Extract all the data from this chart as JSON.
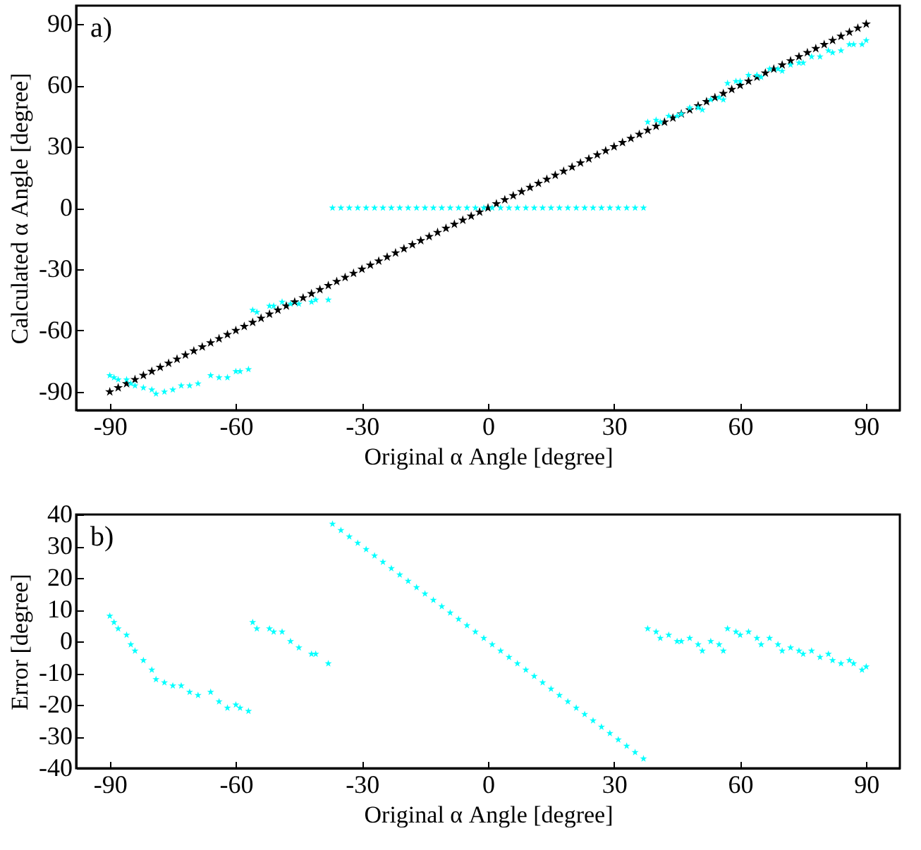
{
  "chart_data": [
    {
      "type": "scatter",
      "xlabel": "Original α Angle [degree]",
      "ylabel": "Calculated α Angle [degree]",
      "annotations": [
        "a)"
      ],
      "xlim": [
        -98,
        98
      ],
      "xticks": [
        -90,
        -60,
        -30,
        0,
        30,
        60,
        90
      ],
      "ylim": [
        -99,
        99
      ],
      "yticks": [
        -90,
        -60,
        -30,
        0,
        30,
        60,
        90
      ],
      "grid": false,
      "marker": "star",
      "series": [
        {
          "color": "#000000",
          "x": [
            -90,
            -88,
            -86,
            -84,
            -82,
            -80,
            -78,
            -76,
            -74,
            -72,
            -70,
            -68,
            -66,
            -64,
            -62,
            -60,
            -58,
            -56,
            -54,
            -52,
            -50,
            -48,
            -46,
            -44,
            -42,
            -40,
            -38,
            -36,
            -34,
            -32,
            -30,
            -28,
            -26,
            -24,
            -22,
            -20,
            -18,
            -16,
            -14,
            -12,
            -10,
            -8,
            -6,
            -4,
            -2,
            0,
            2,
            4,
            6,
            8,
            10,
            12,
            14,
            16,
            18,
            20,
            22,
            24,
            26,
            28,
            30,
            32,
            34,
            36,
            38,
            40,
            42,
            44,
            46,
            48,
            50,
            52,
            54,
            56,
            58,
            60,
            62,
            64,
            66,
            68,
            70,
            72,
            74,
            76,
            78,
            80,
            82,
            84,
            86,
            88,
            90
          ],
          "values": [
            -90,
            -88,
            -86,
            -84,
            -82,
            -80,
            -78,
            -76,
            -74,
            -72,
            -70,
            -68,
            -66,
            -64,
            -62,
            -60,
            -58,
            -56,
            -54,
            -52,
            -50,
            -48,
            -46,
            -44,
            -42,
            -40,
            -38,
            -36,
            -34,
            -32,
            -30,
            -28,
            -26,
            -24,
            -22,
            -20,
            -18,
            -16,
            -14,
            -12,
            -10,
            -8,
            -6,
            -4,
            -2,
            0,
            2,
            4,
            6,
            8,
            10,
            12,
            14,
            16,
            18,
            20,
            22,
            24,
            26,
            28,
            30,
            32,
            34,
            36,
            38,
            40,
            42,
            44,
            46,
            48,
            50,
            52,
            54,
            56,
            58,
            60,
            62,
            64,
            66,
            68,
            70,
            72,
            74,
            76,
            78,
            80,
            82,
            84,
            86,
            88,
            90
          ]
        },
        {
          "color": "#00ffff",
          "x": [
            -90,
            -89,
            -88,
            -86,
            -85,
            -84,
            -82,
            -80,
            -79,
            -77,
            -75,
            -73,
            -71,
            -69,
            -66,
            -64,
            -62,
            -60,
            -59,
            -57,
            -56,
            -55,
            -52,
            -51,
            -49,
            -47,
            -45,
            -42,
            -41,
            -38,
            -37,
            -35,
            -33,
            -31,
            -29,
            -27,
            -25,
            -23,
            -21,
            -19,
            -17,
            -15,
            -13,
            -11,
            -9,
            -7,
            -5,
            -3,
            -1,
            1,
            3,
            5,
            7,
            9,
            11,
            13,
            15,
            17,
            19,
            21,
            23,
            25,
            27,
            29,
            31,
            33,
            35,
            37,
            38,
            40,
            41,
            43,
            45,
            46,
            48,
            50,
            51,
            53,
            55,
            56,
            57,
            59,
            60,
            62,
            64,
            65,
            67,
            69,
            70,
            72,
            74,
            75,
            77,
            79,
            81,
            82,
            84,
            86,
            87,
            89,
            90
          ],
          "values": [
            -82,
            -83,
            -84,
            -84,
            -86,
            -87,
            -88,
            -89,
            -91,
            -90,
            -89,
            -87,
            -87,
            -86,
            -82,
            -83,
            -83,
            -80,
            -80,
            -79,
            -50,
            -51,
            -48,
            -48,
            -46,
            -47,
            -47,
            -46,
            -45,
            -45,
            0,
            0,
            0,
            0,
            0,
            0,
            0,
            0,
            0,
            0,
            0,
            0,
            0,
            0,
            0,
            0,
            0,
            0,
            0,
            0,
            0,
            0,
            0,
            0,
            0,
            0,
            0,
            0,
            0,
            0,
            0,
            0,
            0,
            0,
            0,
            0,
            0,
            0,
            42,
            43,
            42,
            45,
            45,
            46,
            49,
            49,
            48,
            53,
            54,
            53,
            61,
            62,
            62,
            65,
            65,
            64,
            68,
            68,
            67,
            70,
            71,
            71,
            74,
            74,
            77,
            76,
            77,
            80,
            80,
            80,
            82
          ]
        }
      ]
    },
    {
      "type": "scatter",
      "xlabel": "Original α Angle [degree]",
      "ylabel": "Error [degree]",
      "annotations": [
        "b)"
      ],
      "xlim": [
        -98,
        98
      ],
      "xticks": [
        -90,
        -60,
        -30,
        0,
        30,
        60,
        90
      ],
      "ylim": [
        -40,
        40
      ],
      "yticks": [
        -40,
        -30,
        -20,
        -10,
        0,
        10,
        20,
        30,
        40
      ],
      "grid": false,
      "marker": "star",
      "series": [
        {
          "color": "#00ffff",
          "x": [
            -90,
            -89,
            -88,
            -86,
            -85,
            -84,
            -82,
            -80,
            -79,
            -77,
            -75,
            -73,
            -71,
            -69,
            -66,
            -64,
            -62,
            -60,
            -59,
            -57,
            -56,
            -55,
            -52,
            -51,
            -49,
            -47,
            -45,
            -42,
            -41,
            -38,
            -37,
            -35,
            -33,
            -31,
            -29,
            -27,
            -25,
            -23,
            -21,
            -19,
            -17,
            -15,
            -13,
            -11,
            -9,
            -7,
            -5,
            -3,
            -1,
            1,
            3,
            5,
            7,
            9,
            11,
            13,
            15,
            17,
            19,
            21,
            23,
            25,
            27,
            29,
            31,
            33,
            35,
            37,
            38,
            40,
            41,
            43,
            45,
            46,
            48,
            50,
            51,
            53,
            55,
            56,
            57,
            59,
            60,
            62,
            64,
            65,
            67,
            69,
            70,
            72,
            74,
            75,
            77,
            79,
            81,
            82,
            84,
            86,
            87,
            89,
            90
          ],
          "values": [
            8,
            6,
            4,
            2,
            -1,
            -3,
            -6,
            -9,
            -12,
            -13,
            -14,
            -14,
            -16,
            -17,
            -16,
            -19,
            -21,
            -20,
            -21,
            -22,
            6,
            4,
            4,
            3,
            3,
            0,
            -2,
            -4,
            -4,
            -7,
            37,
            35,
            33,
            31,
            29,
            27,
            25,
            23,
            21,
            19,
            17,
            15,
            13,
            11,
            9,
            7,
            5,
            3,
            1,
            -1,
            -3,
            -5,
            -7,
            -9,
            -11,
            -13,
            -15,
            -17,
            -19,
            -21,
            -23,
            -25,
            -27,
            -29,
            -31,
            -33,
            -35,
            -37,
            4,
            3,
            1,
            2,
            0,
            0,
            1,
            -1,
            -3,
            0,
            -1,
            -3,
            4,
            3,
            2,
            3,
            1,
            -1,
            1,
            -1,
            -3,
            -2,
            -3,
            -4,
            -3,
            -5,
            -4,
            -6,
            -7,
            -6,
            -7,
            -9,
            -8
          ]
        }
      ]
    }
  ]
}
